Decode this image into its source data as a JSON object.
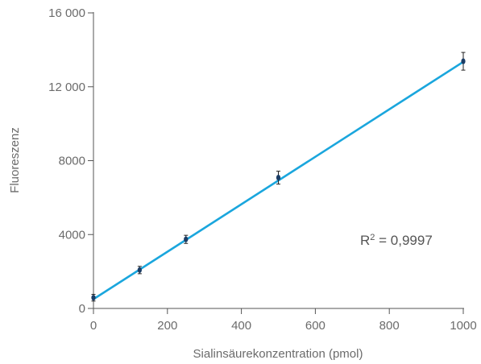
{
  "chart_data": {
    "type": "scatter",
    "title": "",
    "xlabel": "Sialinsäurekonzentration (pmol)",
    "ylabel": "Fluoreszenz",
    "xlim": [
      0,
      1000
    ],
    "ylim": [
      0,
      16000
    ],
    "x_ticks": [
      "0",
      "200",
      "400",
      "600",
      "800",
      "1000"
    ],
    "y_ticks": [
      "0",
      "4000",
      "8000",
      "12 000",
      "16 000"
    ],
    "grid": false,
    "points": [
      {
        "x": 0,
        "y": 580,
        "err": 180
      },
      {
        "x": 125,
        "y": 2080,
        "err": 200
      },
      {
        "x": 250,
        "y": 3740,
        "err": 220
      },
      {
        "x": 500,
        "y": 7080,
        "err": 350
      },
      {
        "x": 1000,
        "y": 13380,
        "err": 480
      }
    ],
    "fit_line": {
      "x": [
        0,
        1000
      ],
      "y": [
        500,
        13350
      ]
    },
    "annotation": {
      "prefix": "R",
      "superscript": "2",
      "suffix": " = 0,9997"
    },
    "colors": {
      "line": "#1aa6dd",
      "points": "#1b3d66",
      "axes": "#555555",
      "text": "#6b6b6b"
    }
  }
}
